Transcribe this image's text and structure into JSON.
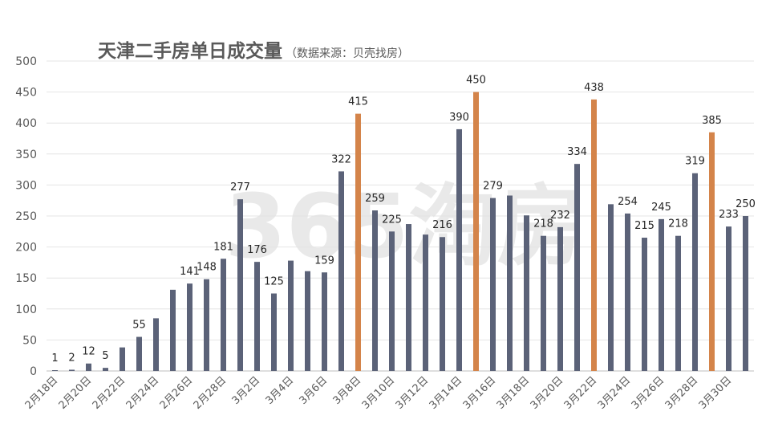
{
  "chart_data": {
    "type": "bar",
    "title": "天津二手房单日成交量",
    "subtitle": "（数据来源：贝壳找房）",
    "watermark": "365淘房",
    "ylim": [
      0,
      500
    ],
    "yticks": [
      0,
      50,
      100,
      150,
      200,
      250,
      300,
      350,
      400,
      450,
      500
    ],
    "grid": true,
    "colors": {
      "normal": "#5b6278",
      "highlight": "#d4844a"
    },
    "categories": [
      "2月18日",
      "2月19日",
      "2月20日",
      "2月21日",
      "2月22日",
      "2月23日",
      "2月24日",
      "2月25日",
      "2月26日",
      "2月27日",
      "2月28日",
      "3月1日",
      "3月2日",
      "3月3日",
      "3月4日",
      "3月5日",
      "3月6日",
      "3月7日",
      "3月8日",
      "3月9日",
      "3月10日",
      "3月11日",
      "3月12日",
      "3月13日",
      "3月14日",
      "3月15日",
      "3月16日",
      "3月17日",
      "3月18日",
      "3月19日",
      "3月20日",
      "3月21日",
      "3月22日",
      "3月23日",
      "3月24日",
      "3月25日",
      "3月26日",
      "3月27日",
      "3月28日",
      "3月29日",
      "3月30日",
      "3月31日"
    ],
    "xtick_labels": [
      "2月18日",
      "2月20日",
      "2月22日",
      "2月24日",
      "2月26日",
      "2月28日",
      "3月2日",
      "3月4日",
      "3月6日",
      "3月8日",
      "3月10日",
      "3月12日",
      "3月14日",
      "3月16日",
      "3月18日",
      "3月20日",
      "3月22日",
      "3月24日",
      "3月26日",
      "3月28日",
      "3月30日"
    ],
    "values": [
      1,
      2,
      12,
      5,
      38,
      55,
      85,
      131,
      141,
      148,
      181,
      277,
      176,
      125,
      178,
      161,
      159,
      322,
      415,
      259,
      225,
      237,
      220,
      216,
      390,
      450,
      279,
      283,
      251,
      218,
      232,
      334,
      438,
      269,
      254,
      215,
      245,
      218,
      319,
      385,
      233,
      250
    ],
    "highlight": [
      false,
      false,
      false,
      false,
      false,
      false,
      false,
      false,
      false,
      false,
      false,
      false,
      false,
      false,
      false,
      false,
      false,
      false,
      true,
      false,
      false,
      false,
      false,
      false,
      false,
      true,
      false,
      false,
      false,
      false,
      false,
      false,
      true,
      false,
      false,
      false,
      false,
      false,
      false,
      true,
      false,
      false
    ],
    "labeled": [
      true,
      true,
      true,
      true,
      false,
      true,
      false,
      false,
      true,
      true,
      true,
      true,
      true,
      true,
      false,
      false,
      true,
      true,
      true,
      true,
      true,
      false,
      false,
      true,
      true,
      true,
      true,
      false,
      false,
      true,
      true,
      true,
      true,
      false,
      true,
      true,
      true,
      true,
      true,
      true,
      true,
      true
    ]
  }
}
